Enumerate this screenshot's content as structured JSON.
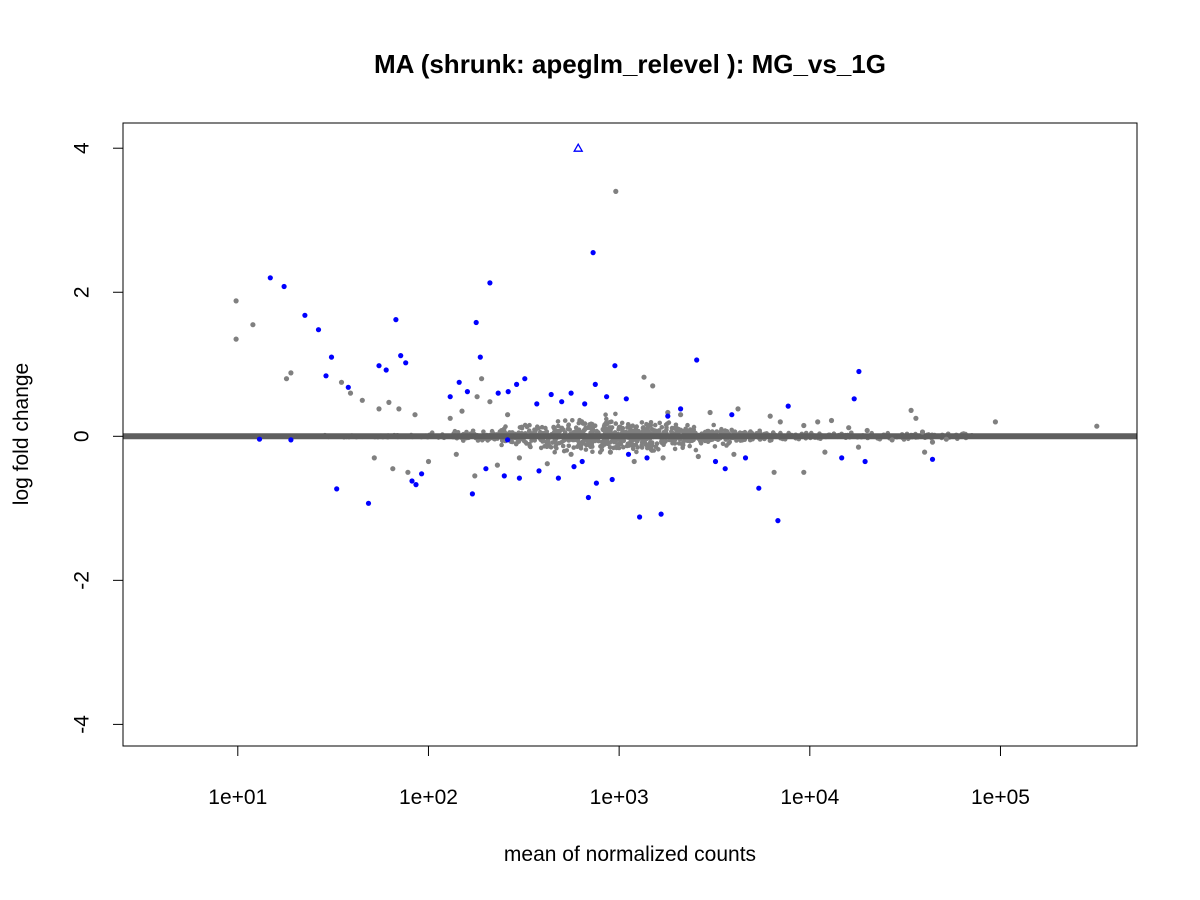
{
  "chart_data": {
    "type": "scatter",
    "title": "MA (shrunk: apeglm_relevel ): MG_vs_1G",
    "xlabel": "mean of normalized counts",
    "ylabel": "log fold change",
    "x_scale": "log10",
    "xlim": [
      2.5,
      520000
    ],
    "ylim": [
      -4.3,
      4.35
    ],
    "x_ticks": [
      {
        "value": 10,
        "label": "1e+01"
      },
      {
        "value": 100,
        "label": "1e+02"
      },
      {
        "value": 1000,
        "label": "1e+03"
      },
      {
        "value": 10000,
        "label": "1e+04"
      },
      {
        "value": 100000,
        "label": "1e+05"
      }
    ],
    "y_ticks": [
      {
        "value": 4,
        "label": "4"
      },
      {
        "value": 2,
        "label": "2"
      },
      {
        "value": 0,
        "label": "0"
      },
      {
        "value": -2,
        "label": "-2"
      },
      {
        "value": -4,
        "label": "-4"
      }
    ],
    "grid": false,
    "legend": "none",
    "colors": {
      "not_significant": "#808080",
      "significant": "#0000ff",
      "baseline": "#5f5f5f"
    },
    "series": [
      {
        "points": [
          [
            9.8,
            1.88
          ],
          [
            9.8,
            1.35
          ],
          [
            12,
            1.55
          ],
          [
            18,
            0.8
          ],
          [
            19,
            0.88
          ],
          [
            35,
            0.75
          ],
          [
            39,
            0.6
          ],
          [
            45,
            0.5
          ],
          [
            55,
            0.38
          ],
          [
            62,
            0.47
          ],
          [
            70,
            0.38
          ],
          [
            85,
            0.3
          ],
          [
            130,
            0.25
          ],
          [
            150,
            0.35
          ],
          [
            180,
            0.55
          ],
          [
            190,
            0.8
          ],
          [
            210,
            0.48
          ],
          [
            260,
            0.3
          ],
          [
            960,
            3.4
          ],
          [
            1350,
            0.82
          ],
          [
            1500,
            0.7
          ],
          [
            1800,
            0.33
          ],
          [
            2100,
            0.3
          ],
          [
            3000,
            0.33
          ],
          [
            4200,
            0.38
          ],
          [
            6200,
            0.28
          ],
          [
            9300,
            0.15
          ],
          [
            11000,
            0.2
          ],
          [
            13000,
            0.22
          ],
          [
            16000,
            0.12
          ],
          [
            20000,
            0.08
          ],
          [
            34000,
            0.36
          ],
          [
            36000,
            0.25
          ],
          [
            39000,
            0.06
          ],
          [
            44000,
            -0.08
          ],
          [
            52000,
            -0.04
          ],
          [
            94000,
            0.2
          ],
          [
            320000,
            0.14
          ],
          [
            52,
            -0.3
          ],
          [
            65,
            -0.45
          ],
          [
            78,
            -0.5
          ],
          [
            100,
            -0.35
          ],
          [
            140,
            -0.25
          ],
          [
            175,
            -0.55
          ],
          [
            230,
            -0.4
          ],
          [
            300,
            -0.3
          ],
          [
            420,
            -0.38
          ],
          [
            560,
            -0.25
          ],
          [
            900,
            -0.22
          ],
          [
            1200,
            -0.35
          ],
          [
            1700,
            -0.3
          ],
          [
            2600,
            -0.28
          ],
          [
            4000,
            -0.25
          ],
          [
            6500,
            -0.5
          ],
          [
            9300,
            -0.5
          ],
          [
            12000,
            -0.22
          ],
          [
            18000,
            -0.15
          ],
          [
            40000,
            -0.22
          ],
          [
            27000,
            -0.05
          ],
          [
            7000,
            0.2
          ]
        ]
      },
      {
        "points": [
          [
            14.8,
            2.2
          ],
          [
            17.5,
            2.08
          ],
          [
            22.5,
            1.68
          ],
          [
            26.5,
            1.48
          ],
          [
            31,
            1.1
          ],
          [
            29,
            0.84
          ],
          [
            33,
            -0.73
          ],
          [
            38,
            0.68
          ],
          [
            48.5,
            -0.93
          ],
          [
            55,
            0.98
          ],
          [
            60,
            0.92
          ],
          [
            67.5,
            1.62
          ],
          [
            71.5,
            1.12
          ],
          [
            76,
            1.02
          ],
          [
            82,
            -0.62
          ],
          [
            86,
            -0.67
          ],
          [
            92,
            -0.52
          ],
          [
            210,
            2.13
          ],
          [
            178,
            1.58
          ],
          [
            187,
            1.1
          ],
          [
            145,
            0.75
          ],
          [
            160,
            0.62
          ],
          [
            130,
            0.55
          ],
          [
            232,
            0.6
          ],
          [
            262,
            0.62
          ],
          [
            290,
            0.72
          ],
          [
            320,
            0.8
          ],
          [
            370,
            0.45
          ],
          [
            440,
            0.58
          ],
          [
            500,
            0.48
          ],
          [
            560,
            0.6
          ],
          [
            660,
            0.45
          ],
          [
            750,
            0.72
          ],
          [
            860,
            0.55
          ],
          [
            730,
            2.55
          ],
          [
            950,
            0.98
          ],
          [
            1090,
            0.52
          ],
          [
            170,
            -0.8
          ],
          [
            200,
            -0.45
          ],
          [
            250,
            -0.55
          ],
          [
            300,
            -0.58
          ],
          [
            380,
            -0.48
          ],
          [
            480,
            -0.58
          ],
          [
            580,
            -0.42
          ],
          [
            640,
            -0.35
          ],
          [
            690,
            -0.85
          ],
          [
            760,
            -0.65
          ],
          [
            920,
            -0.6
          ],
          [
            1280,
            -1.12
          ],
          [
            1660,
            -1.08
          ],
          [
            1120,
            -0.25
          ],
          [
            1400,
            -0.3
          ],
          [
            1800,
            0.28
          ],
          [
            2100,
            0.38
          ],
          [
            2550,
            1.06
          ],
          [
            3200,
            -0.35
          ],
          [
            3600,
            -0.45
          ],
          [
            3900,
            0.3
          ],
          [
            4600,
            -0.3
          ],
          [
            5400,
            -0.72
          ],
          [
            6800,
            -1.17
          ],
          [
            7700,
            0.42
          ],
          [
            17100,
            0.52
          ],
          [
            18100,
            0.9
          ],
          [
            14700,
            -0.3
          ],
          [
            19500,
            -0.35
          ],
          [
            44000,
            -0.32
          ],
          [
            260,
            -0.05
          ],
          [
            19,
            -0.05
          ],
          [
            13,
            -0.04
          ]
        ]
      },
      {
        "marker": "triangle",
        "points": [
          [
            610,
            4.0
          ]
        ]
      }
    ]
  }
}
